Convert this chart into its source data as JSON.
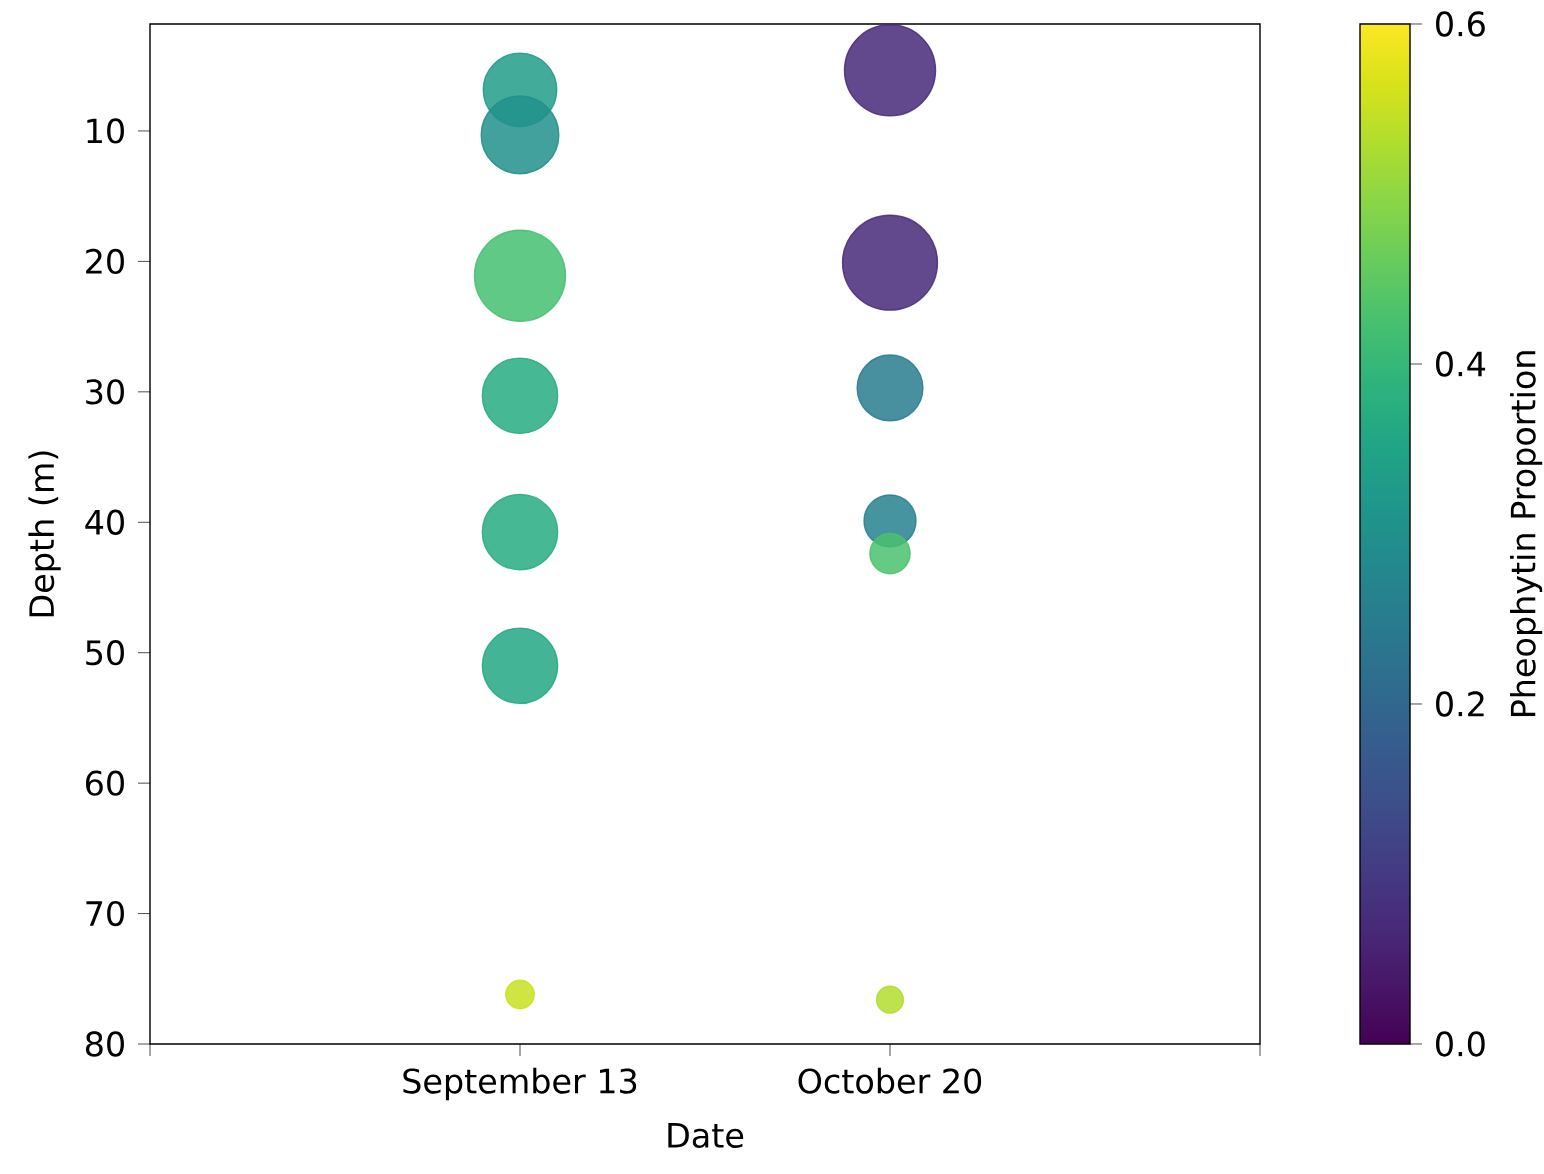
{
  "chart_data": {
    "type": "bubble",
    "xlabel": "Date",
    "ylabel": "Depth (m)",
    "clabel": "Pheophytin Proportion",
    "categories": [
      "September 13",
      "October 20"
    ],
    "series": [
      {
        "x": [
          "September 13",
          "September 13",
          "September 13",
          "September 13",
          "September 13",
          "September 13",
          "September 13"
        ],
        "values": [
          6.85,
          10.3,
          21.1,
          30.3,
          40.75,
          51,
          76.2
        ],
        "sizes": [
          0.6,
          0.67,
          0.92,
          0.63,
          0.63,
          0.63,
          0.09
        ],
        "cvalues": [
          0.33,
          0.3,
          0.42,
          0.37,
          0.37,
          0.36,
          0.55
        ],
        "colors": [
          "#219c88",
          "#21918c",
          "#44bf70",
          "#27ac81",
          "#27ac81",
          "#22a884",
          "#c8e020"
        ]
      },
      {
        "x": [
          "October 20",
          "October 20",
          "October 20",
          "October 20",
          "October 20",
          "October 20"
        ],
        "values": [
          5.35,
          20.1,
          29.7,
          39.9,
          42.4,
          76.6
        ],
        "sizes": [
          0.92,
          1,
          0.48,
          0.3,
          0.18,
          0.08
        ],
        "cvalues": [
          0.07,
          0.07,
          0.25,
          0.26,
          0.43,
          0.53
        ],
        "colors": [
          "#472878",
          "#472878",
          "#287c8e",
          "#26818e",
          "#4ac16d",
          "#b2dd2d"
        ]
      }
    ],
    "ylim": [
      80,
      1.8
    ],
    "yticks": [
      10,
      20,
      30,
      40,
      50,
      60,
      70,
      80
    ],
    "clim": [
      0,
      0.6
    ],
    "cticks": [
      {
        "value": 0,
        "label": "0.0"
      },
      0.2,
      0.4,
      0.6
    ],
    "marker": "circle"
  }
}
